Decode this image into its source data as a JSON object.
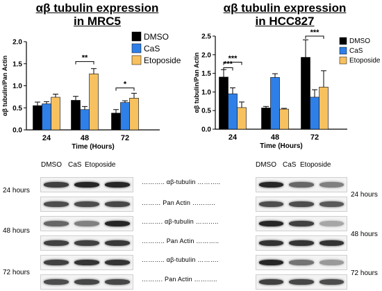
{
  "titles": {
    "left_line1": "αβ tubulin expression",
    "left_line2": "in MRC5",
    "right_line1": "αβ tubulin expression",
    "right_line2": "in HCC827"
  },
  "colors": {
    "DMSO": "#000000",
    "CaS": "#2f7fe8",
    "Etoposide": "#f7c15f"
  },
  "chart_data": [
    {
      "type": "bar",
      "title": "αβ tubulin expression in MRC5",
      "categories": [
        "24",
        "48",
        "72"
      ],
      "xlabel": "Time (Hours)",
      "ylabel": "αβ tubulin/Pan Actin",
      "ylim": [
        0,
        2.0
      ],
      "yticks": [
        "0.0",
        "0.5",
        "1.0",
        "1.5",
        "2.0"
      ],
      "yticks_values": [
        0,
        0.5,
        1.0,
        1.5,
        2.0
      ],
      "legend_position": "top-right",
      "series": [
        {
          "name": "DMSO",
          "values": [
            0.55,
            0.67,
            0.38
          ],
          "errors": [
            0.08,
            0.09,
            0.08
          ]
        },
        {
          "name": "CaS",
          "values": [
            0.59,
            0.46,
            0.62
          ],
          "errors": [
            0.05,
            0.07,
            0.04
          ]
        },
        {
          "name": "Etoposide",
          "values": [
            0.74,
            1.27,
            0.72
          ],
          "errors": [
            0.07,
            0.12,
            0.11
          ]
        }
      ],
      "significance": [
        {
          "label": "**",
          "category": "48",
          "from_series": 0,
          "to_series": 2,
          "y": 1.55
        },
        {
          "label": "*",
          "category": "72",
          "from_series": 0,
          "to_series": 2,
          "y": 0.95
        }
      ]
    },
    {
      "type": "bar",
      "title": "αβ tubulin expression in HCC827",
      "categories": [
        "24",
        "48",
        "72"
      ],
      "xlabel": "Time (Hours)",
      "ylabel": "αβ tubulin/Pan Actin",
      "ylim": [
        0,
        2.5
      ],
      "yticks": [
        "0.0",
        "0.5",
        "1.0",
        "1.5",
        "2.0",
        "2.5"
      ],
      "yticks_values": [
        0,
        0.5,
        1.0,
        1.5,
        2.0,
        2.5
      ],
      "legend_position": "top-right",
      "series": [
        {
          "name": "DMSO",
          "values": [
            1.4,
            0.57,
            1.93
          ],
          "errors": [
            0.2,
            0.04,
            0.47
          ]
        },
        {
          "name": "CaS",
          "values": [
            0.95,
            1.39,
            0.86
          ],
          "errors": [
            0.16,
            0.1,
            0.2
          ]
        },
        {
          "name": "Etoposide",
          "values": [
            0.58,
            0.54,
            1.13
          ],
          "errors": [
            0.15,
            0.02,
            0.44
          ]
        }
      ],
      "significance": [
        {
          "label": "***",
          "category": "24",
          "from_series": 0,
          "to_series": 1,
          "y": 1.65
        },
        {
          "label": "***",
          "category": "24",
          "from_series": 0,
          "to_series": 2,
          "y": 1.8
        },
        {
          "label": "***",
          "category": "72",
          "from_series": 0,
          "to_series": 2,
          "y": 2.5
        }
      ]
    }
  ],
  "blots": {
    "lane_labels": [
      "DMSO",
      "CaS",
      "Etoposide"
    ],
    "time_labels": [
      "24 hours",
      "48 hours",
      "72 hours"
    ],
    "mid_labels": [
      "……….. αβ-tubulin ………..",
      "……… Pan Actin ………..",
      "………. αβ-tubulin ………..",
      "……….. Pan Actin ………..",
      "……….. αβ-tubulin ……….",
      "………. Pan Actin ……….."
    ],
    "left_intensity": [
      [
        0.75,
        0.85,
        0.85
      ],
      [
        0.7,
        0.7,
        0.72
      ],
      [
        0.6,
        0.5,
        0.85
      ],
      [
        0.75,
        0.75,
        0.78
      ],
      [
        0.75,
        0.8,
        0.8
      ],
      [
        0.7,
        0.72,
        0.72
      ]
    ],
    "right_intensity": [
      [
        0.85,
        0.6,
        0.5
      ],
      [
        0.7,
        0.7,
        0.65
      ],
      [
        0.85,
        0.75,
        0.35
      ],
      [
        0.8,
        0.8,
        0.8
      ],
      [
        0.85,
        0.55,
        0.4
      ],
      [
        0.75,
        0.72,
        0.7
      ]
    ]
  }
}
